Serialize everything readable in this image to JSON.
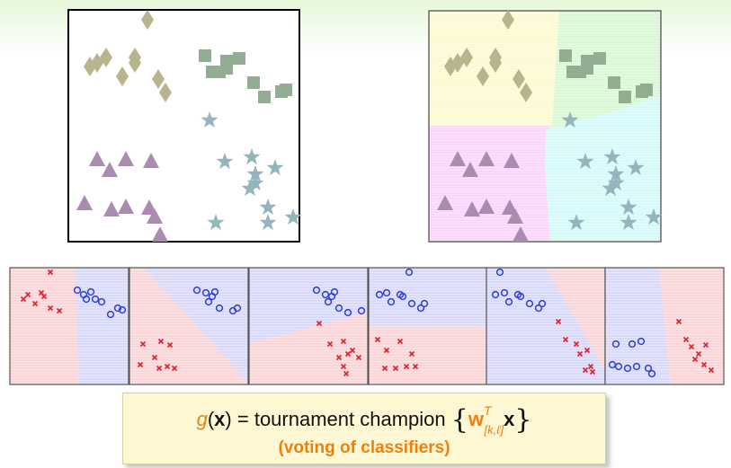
{
  "formula": {
    "lhs_func": "g",
    "lhs_var": "x",
    "equals": "=",
    "text": "tournament champion",
    "lbrace": "{",
    "weight": "w",
    "weight_sup": "T",
    "weight_sub": "[k,ℓ]",
    "var": "x",
    "rbrace": "}",
    "subtitle": "(voting of classifiers)"
  },
  "colors": {
    "olive": "#b8b48e",
    "green": "#93ad93",
    "purple": "#a98cb0",
    "teal": "#94b5bd",
    "red_point": "#e0202a",
    "blue_point": "#2b3fd6",
    "region_yellow": "#fcfad3",
    "region_green": "#daf8d6",
    "region_pink": "#fbd6fb",
    "region_cyan": "#d6fafa",
    "region_red": "#fbd6d8",
    "region_blue": "#d9d9fa",
    "accent_orange": "#f07f10"
  }
}
